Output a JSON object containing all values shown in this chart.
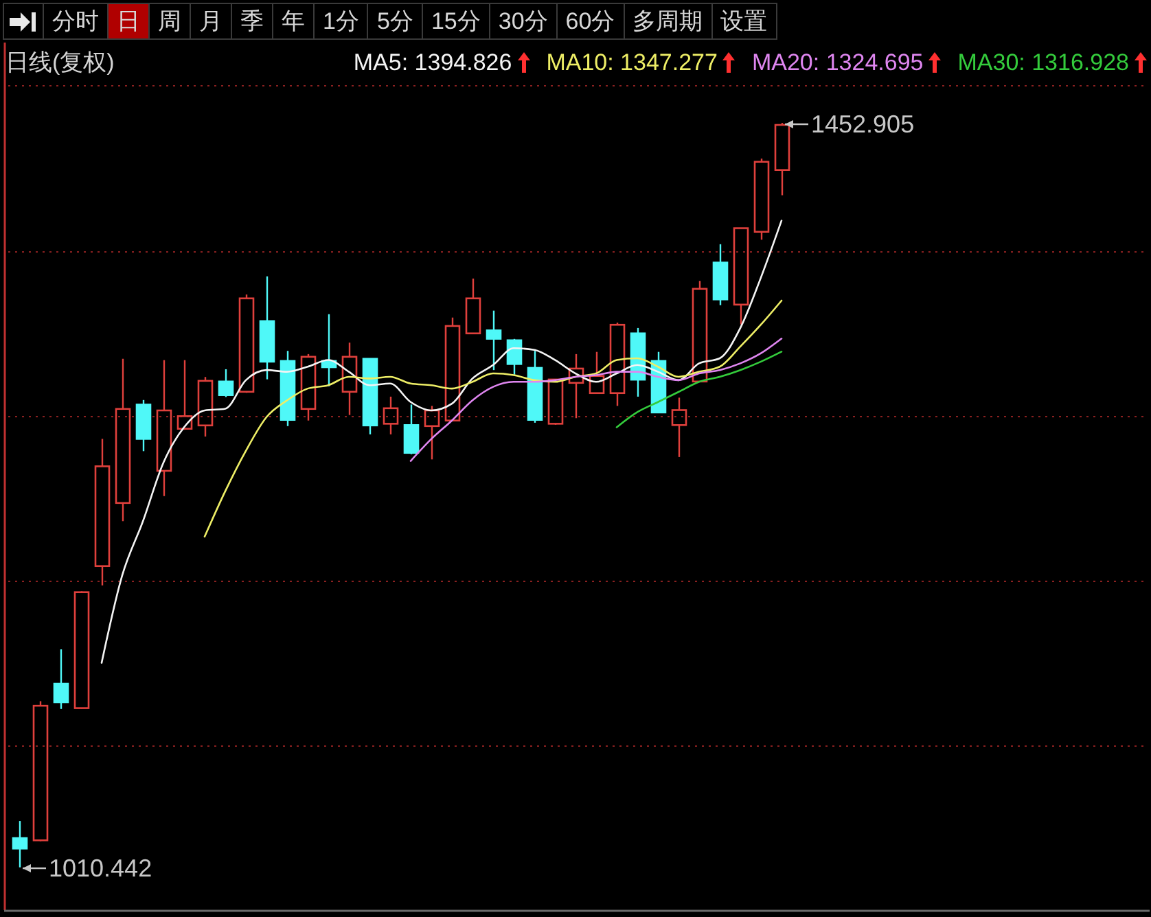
{
  "chart_data": {
    "type": "candlestick",
    "title": "日线(复权)",
    "categories": [
      null,
      null,
      null,
      null,
      null,
      null,
      null,
      null,
      null,
      null,
      null,
      null,
      null,
      null,
      null,
      null,
      null,
      null,
      null,
      null,
      null,
      null,
      null,
      null,
      null,
      null,
      null,
      null,
      null,
      null,
      null,
      null,
      null,
      null,
      null,
      null,
      null,
      null
    ],
    "ohlc": [
      [
        1027.8,
        1038.0,
        1010.442,
        1021.6
      ],
      [
        1026.5,
        1109.2,
        1026.0,
        1106.5
      ],
      [
        1119.6,
        1140.0,
        1104.6,
        1108.6
      ],
      [
        1105.1,
        1174.5,
        1104.8,
        1174.0
      ],
      [
        1189.5,
        1265.1,
        1178.0,
        1248.8
      ],
      [
        1227.0,
        1312.7,
        1216.2,
        1282.9
      ],
      [
        1285.5,
        1288.2,
        1257.8,
        1265.1
      ],
      [
        1246.1,
        1311.9,
        1231.1,
        1282.0
      ],
      [
        1271.1,
        1311.9,
        1270.5,
        1278.6
      ],
      [
        1273.1,
        1301.9,
        1266.5,
        1299.6
      ],
      [
        1299.2,
        1306.5,
        1290.0,
        1291.1
      ],
      [
        1293.1,
        1350.9,
        1292.5,
        1348.6
      ],
      [
        1335.1,
        1361.7,
        1300.5,
        1311.0
      ],
      [
        1311.4,
        1317.4,
        1272.7,
        1276.4
      ],
      [
        1282.9,
        1315.5,
        1276.0,
        1313.9
      ],
      [
        1311.4,
        1339.2,
        1296.4,
        1307.7
      ],
      [
        1293.1,
        1322.3,
        1279.3,
        1313.9
      ],
      [
        1312.7,
        1313.0,
        1267.8,
        1273.1
      ],
      [
        1274.1,
        1290.2,
        1267.8,
        1283.3
      ],
      [
        1273.3,
        1285.5,
        1256.0,
        1256.8
      ],
      [
        1272.7,
        1284.7,
        1252.9,
        1282.0
      ],
      [
        1276.0,
        1337.2,
        1275.5,
        1332.2
      ],
      [
        1327.8,
        1360.4,
        1327.5,
        1348.6
      ],
      [
        1329.6,
        1341.3,
        1306.0,
        1324.6
      ],
      [
        1323.7,
        1324.5,
        1303.3,
        1309.6
      ],
      [
        1307.3,
        1317.4,
        1274.7,
        1276.4
      ],
      [
        1274.1,
        1300.6,
        1273.5,
        1300.4
      ],
      [
        1298.4,
        1315.5,
        1277.4,
        1306.9
      ],
      [
        1292.3,
        1316.8,
        1291.8,
        1302.5
      ],
      [
        1292.3,
        1334.2,
        1284.7,
        1332.9
      ],
      [
        1327.8,
        1331.0,
        1290.2,
        1300.3
      ],
      [
        1311.4,
        1316.8,
        1280.5,
        1280.8
      ],
      [
        1273.3,
        1289.6,
        1254.3,
        1282.2
      ],
      [
        1299.2,
        1359.0,
        1298.7,
        1354.3
      ],
      [
        1369.9,
        1380.8,
        1344.6,
        1348.0
      ],
      [
        1344.9,
        1390.5,
        1333.1,
        1390.3
      ],
      [
        1388.2,
        1431.7,
        1383.5,
        1429.8
      ],
      [
        1424.9,
        1452.905,
        1409.9,
        1451.7
      ]
    ],
    "colors": [
      "#4ff8f8",
      "#e0403c",
      "#4ff8f8",
      "#e0403c",
      "#e0403c",
      "#e0403c",
      "#4ff8f8",
      "#e0403c",
      "#e0403c",
      "#e0403c",
      "#4ff8f8",
      "#e0403c",
      "#4ff8f8",
      "#4ff8f8",
      "#e0403c",
      "#4ff8f8",
      "#e0403c",
      "#4ff8f8",
      "#e0403c",
      "#4ff8f8",
      "#e0403c",
      "#e0403c",
      "#e0403c",
      "#4ff8f8",
      "#4ff8f8",
      "#4ff8f8",
      "#e0403c",
      "#e0403c",
      "#e0403c",
      "#e0403c",
      "#4ff8f8",
      "#4ff8f8",
      "#e0403c",
      "#e0403c",
      "#4ff8f8",
      "#e0403c",
      "#e0403c",
      "#e0403c"
    ],
    "series": [
      {
        "name": "MA5: 1394.826",
        "type": "line",
        "color": "#f4f4f4",
        "values": [
          null,
          null,
          null,
          null,
          1132,
          1184,
          1216,
          1251,
          1272,
          1282,
          1283,
          1300,
          1306,
          1305,
          1308,
          1312,
          1305,
          1297,
          1298,
          1287,
          1282,
          1286,
          1301,
          1309,
          1319,
          1318,
          1312,
          1304,
          1299,
          1304,
          1309,
          1305,
          1300,
          1310,
          1313,
          1331,
          1361,
          1394.826
        ]
      },
      {
        "name": "MA10: 1347.277",
        "type": "line",
        "color": "#eeee66",
        "values": [
          null,
          null,
          null,
          null,
          null,
          null,
          null,
          null,
          null,
          1207,
          1234,
          1258,
          1278,
          1288,
          1295,
          1297,
          1302,
          1301,
          1302,
          1298,
          1297,
          1295,
          1299,
          1304,
          1303,
          1300,
          1299,
          1302,
          1304,
          1312,
          1313,
          1308,
          1302,
          1305,
          1308,
          1320,
          1333,
          1347.277
        ]
      },
      {
        "name": "MA20: 1324.695",
        "type": "line",
        "color": "#df86f0",
        "values": [
          null,
          null,
          null,
          null,
          null,
          null,
          null,
          null,
          null,
          null,
          null,
          null,
          null,
          null,
          null,
          null,
          null,
          null,
          null,
          1252,
          1265,
          1276,
          1288,
          1296,
          1299,
          1299,
          1300,
          1302,
          1303,
          1305,
          1305,
          1302,
          1300,
          1304,
          1306,
          1310,
          1316,
          1324.695
        ]
      },
      {
        "name": "MA30: 1316.928",
        "type": "line",
        "color": "#34cc3c",
        "values": [
          null,
          null,
          null,
          null,
          null,
          null,
          null,
          null,
          null,
          null,
          null,
          null,
          null,
          null,
          null,
          null,
          null,
          null,
          null,
          null,
          null,
          null,
          null,
          null,
          null,
          null,
          null,
          null,
          null,
          1272,
          1281,
          1287,
          1293,
          1299,
          1302,
          1306,
          1311,
          1316.928
        ]
      }
    ],
    "ylim": [
      985,
      1477
    ],
    "yticks": [
      {
        "value": 1083,
        "label": null
      },
      {
        "value": 1181,
        "label": null
      },
      {
        "value": 1279,
        "label": null
      },
      {
        "value": 1377,
        "label": null
      },
      {
        "value": 1475,
        "label": null
      }
    ],
    "grid": "y",
    "legend": "top right",
    "annotations": [
      "分时",
      "日",
      "周",
      "月",
      "季",
      "年",
      "1分",
      "5分",
      "15分",
      "30分",
      "60分",
      "多周期",
      "设置",
      "1452.905",
      "1010.442"
    ]
  }
}
